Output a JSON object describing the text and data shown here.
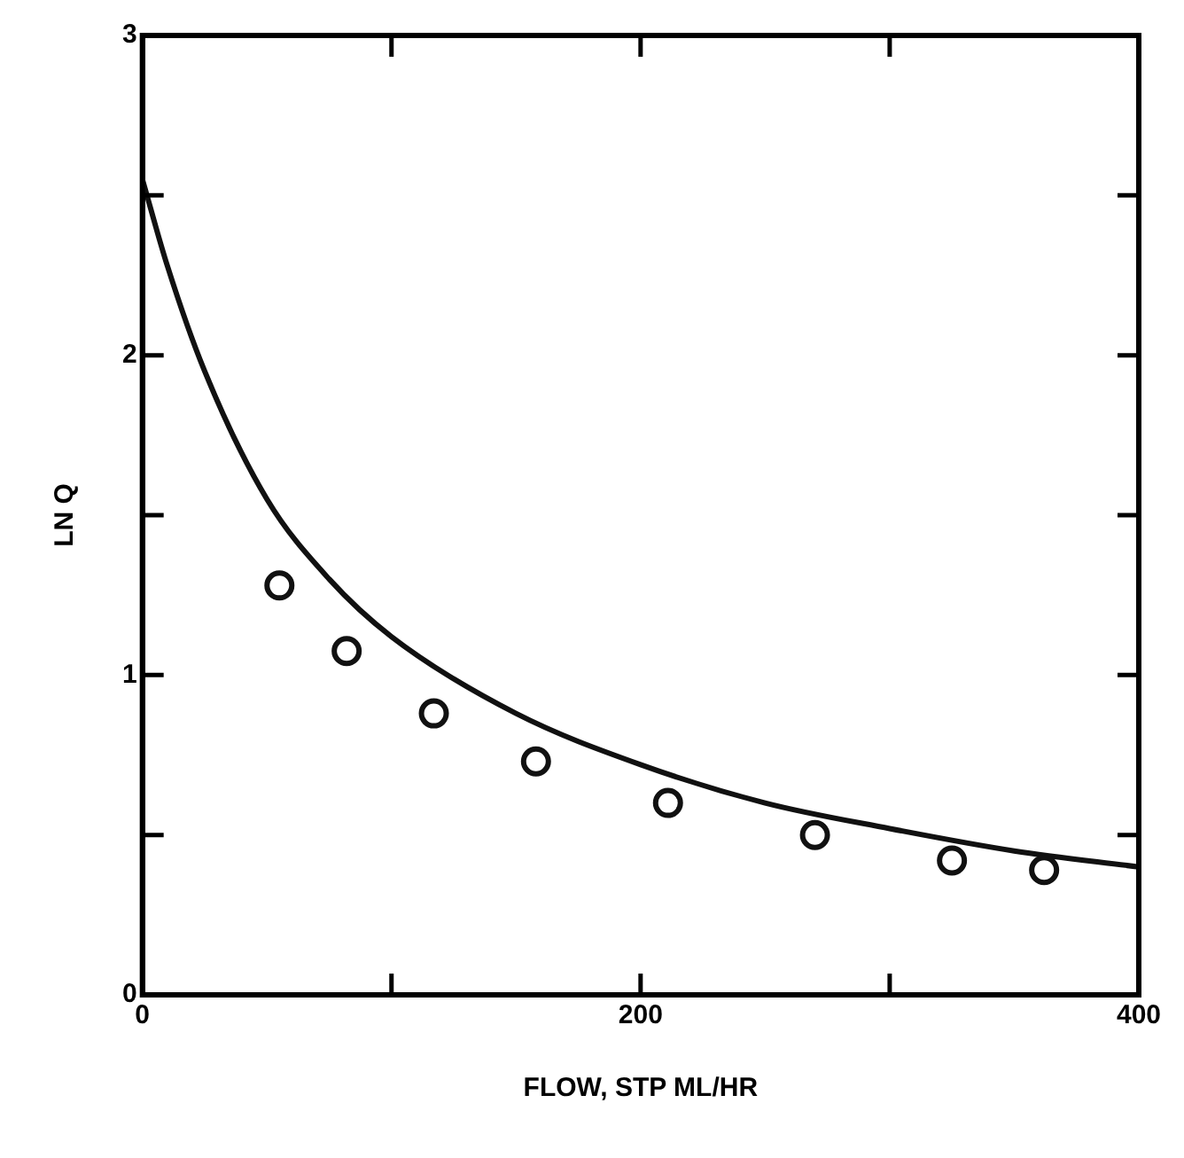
{
  "chart_data": {
    "type": "scatter",
    "xlabel": "FLOW, STP ML/HR",
    "ylabel": "LN Q",
    "xlim": [
      0,
      400
    ],
    "ylim": [
      0,
      3
    ],
    "xticks": [
      0,
      {
        "value": 100,
        "label": null
      },
      200,
      {
        "value": 300,
        "label": null
      },
      400
    ],
    "yticks": [
      0,
      {
        "value": 0.5,
        "label": null
      },
      1,
      {
        "value": 1.5,
        "label": null
      },
      2,
      {
        "value": 2.5,
        "label": null
      },
      3
    ],
    "grid": false,
    "legend": false,
    "series": [
      {
        "type": "scatter",
        "marker": "circle",
        "color": "#111111",
        "x": [
          55,
          82,
          117,
          158,
          211,
          270,
          325,
          362
        ],
        "values": [
          1.28,
          1.075,
          0.88,
          0.73,
          0.6,
          0.5,
          0.42,
          0.39
        ]
      },
      {
        "type": "line",
        "marker": "none",
        "line_style": "solid",
        "color": "#111111",
        "x": [
          0,
          10,
          25,
          50,
          75,
          100,
          150,
          200,
          250,
          300,
          350,
          400
        ],
        "values": [
          2.55,
          2.28,
          1.95,
          1.55,
          1.3,
          1.12,
          0.88,
          0.72,
          0.6,
          0.52,
          0.45,
          0.4
        ]
      }
    ]
  }
}
